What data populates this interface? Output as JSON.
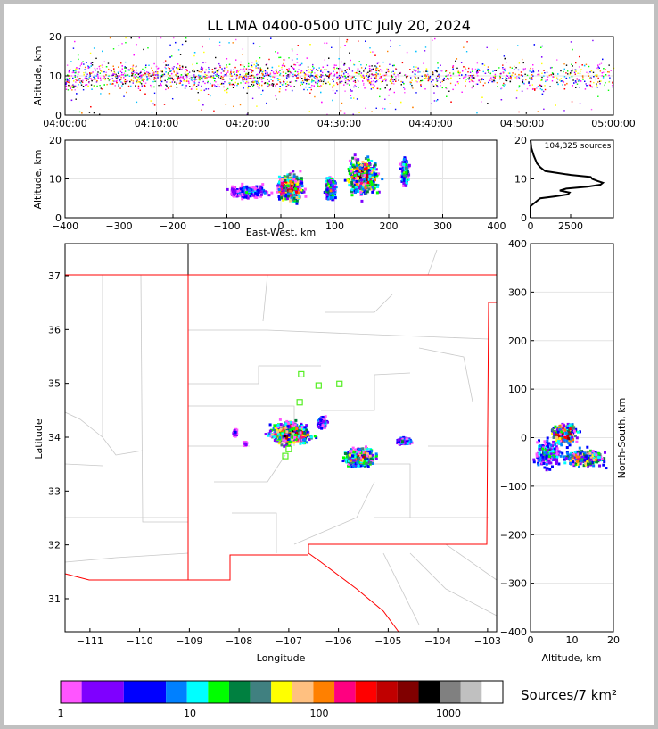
{
  "title": "LL LMA 0400-0500 UTC July 20, 2024",
  "colorbar": {
    "label": "Sources/7 km²",
    "ticks": [
      "1",
      "10",
      "100",
      "1000"
    ],
    "colors": [
      "#ff55ff",
      "#7f00ff",
      "#0000ff",
      "#0080ff",
      "#00ffff",
      "#00ff00",
      "#008040",
      "#408080",
      "#ffff00",
      "#ffc080",
      "#ff8000",
      "#ff0080",
      "#ff0000",
      "#c00000",
      "#800000",
      "#000000",
      "#808080",
      "#c0c0c0",
      "#ffffff"
    ]
  },
  "chart_data": [
    {
      "type": "scatter",
      "name": "time-height",
      "ylabel": "Altitude, km",
      "ylim": [
        0,
        20
      ],
      "yticks": [
        "0",
        "10",
        "20"
      ],
      "xticks": [
        "04:00:00",
        "04:10:00",
        "04:20:00",
        "04:30:00",
        "04:40:00",
        "04:50:00",
        "05:00:00"
      ],
      "xlim_minutes": [
        0,
        60
      ]
    },
    {
      "type": "heatmap",
      "name": "east-west-height",
      "xlabel": "East-West, km",
      "ylabel": "Altitude, km",
      "xlim": [
        -400,
        400
      ],
      "ylim": [
        0,
        20
      ],
      "xticks": [
        "−400",
        "−300",
        "−200",
        "−100",
        "0",
        "100",
        "200",
        "300",
        "400"
      ],
      "yticks": [
        "0",
        "10",
        "20"
      ]
    },
    {
      "type": "line",
      "name": "altitude-histogram",
      "annotation": "104,325 sources",
      "xlim": [
        0,
        5100
      ],
      "ylim": [
        0,
        20
      ],
      "xticks": [
        "0",
        "2500"
      ],
      "yticks": [
        "0",
        "10",
        "20"
      ],
      "altitude": [
        0,
        3,
        4,
        5,
        5.5,
        6,
        6.5,
        7,
        7.5,
        8,
        8.5,
        9,
        9.5,
        10,
        10.5,
        11,
        12,
        13,
        14,
        16,
        18,
        20
      ],
      "count": [
        0,
        0,
        300,
        600,
        1500,
        2300,
        2400,
        1800,
        2200,
        3500,
        4300,
        4450,
        4100,
        3800,
        3700,
        2500,
        900,
        600,
        400,
        200,
        50,
        0
      ]
    },
    {
      "type": "heatmap",
      "name": "plan-view",
      "xlabel": "Longitude",
      "ylabel": "Latitude",
      "xlim": [
        -111.5,
        -102.82
      ],
      "ylim": [
        31.39,
        37.6
      ],
      "xticks": [
        "−111",
        "−110",
        "−109",
        "−108",
        "−107",
        "−106",
        "−105",
        "−104",
        "−103"
      ],
      "yticks": [
        "31",
        "32",
        "33",
        "34",
        "35",
        "36",
        "37"
      ],
      "clusters": [
        {
          "lon": -107.0,
          "lat": 34.1
        },
        {
          "lon": -105.6,
          "lat": 33.65
        },
        {
          "lon": -104.7,
          "lat": 33.95
        },
        {
          "lon": -106.3,
          "lat": 34.3
        }
      ],
      "stations": [
        [
          -106.75,
          35.17
        ],
        [
          -106.4,
          34.96
        ],
        [
          -105.98,
          34.99
        ],
        [
          -106.78,
          34.65
        ],
        [
          -107.07,
          33.65
        ],
        [
          -107.0,
          33.78
        ],
        [
          -107.2,
          33.99
        ]
      ]
    },
    {
      "type": "heatmap",
      "name": "north-south-height",
      "xlabel": "Altitude, km",
      "ylabel": "North-South, km",
      "xlim": [
        0,
        20
      ],
      "ylim": [
        -400,
        400
      ],
      "xticks": [
        "0",
        "10",
        "20"
      ],
      "yticks": [
        "−400",
        "−300",
        "−200",
        "−100",
        "0",
        "100",
        "200",
        "300",
        "400"
      ]
    }
  ]
}
